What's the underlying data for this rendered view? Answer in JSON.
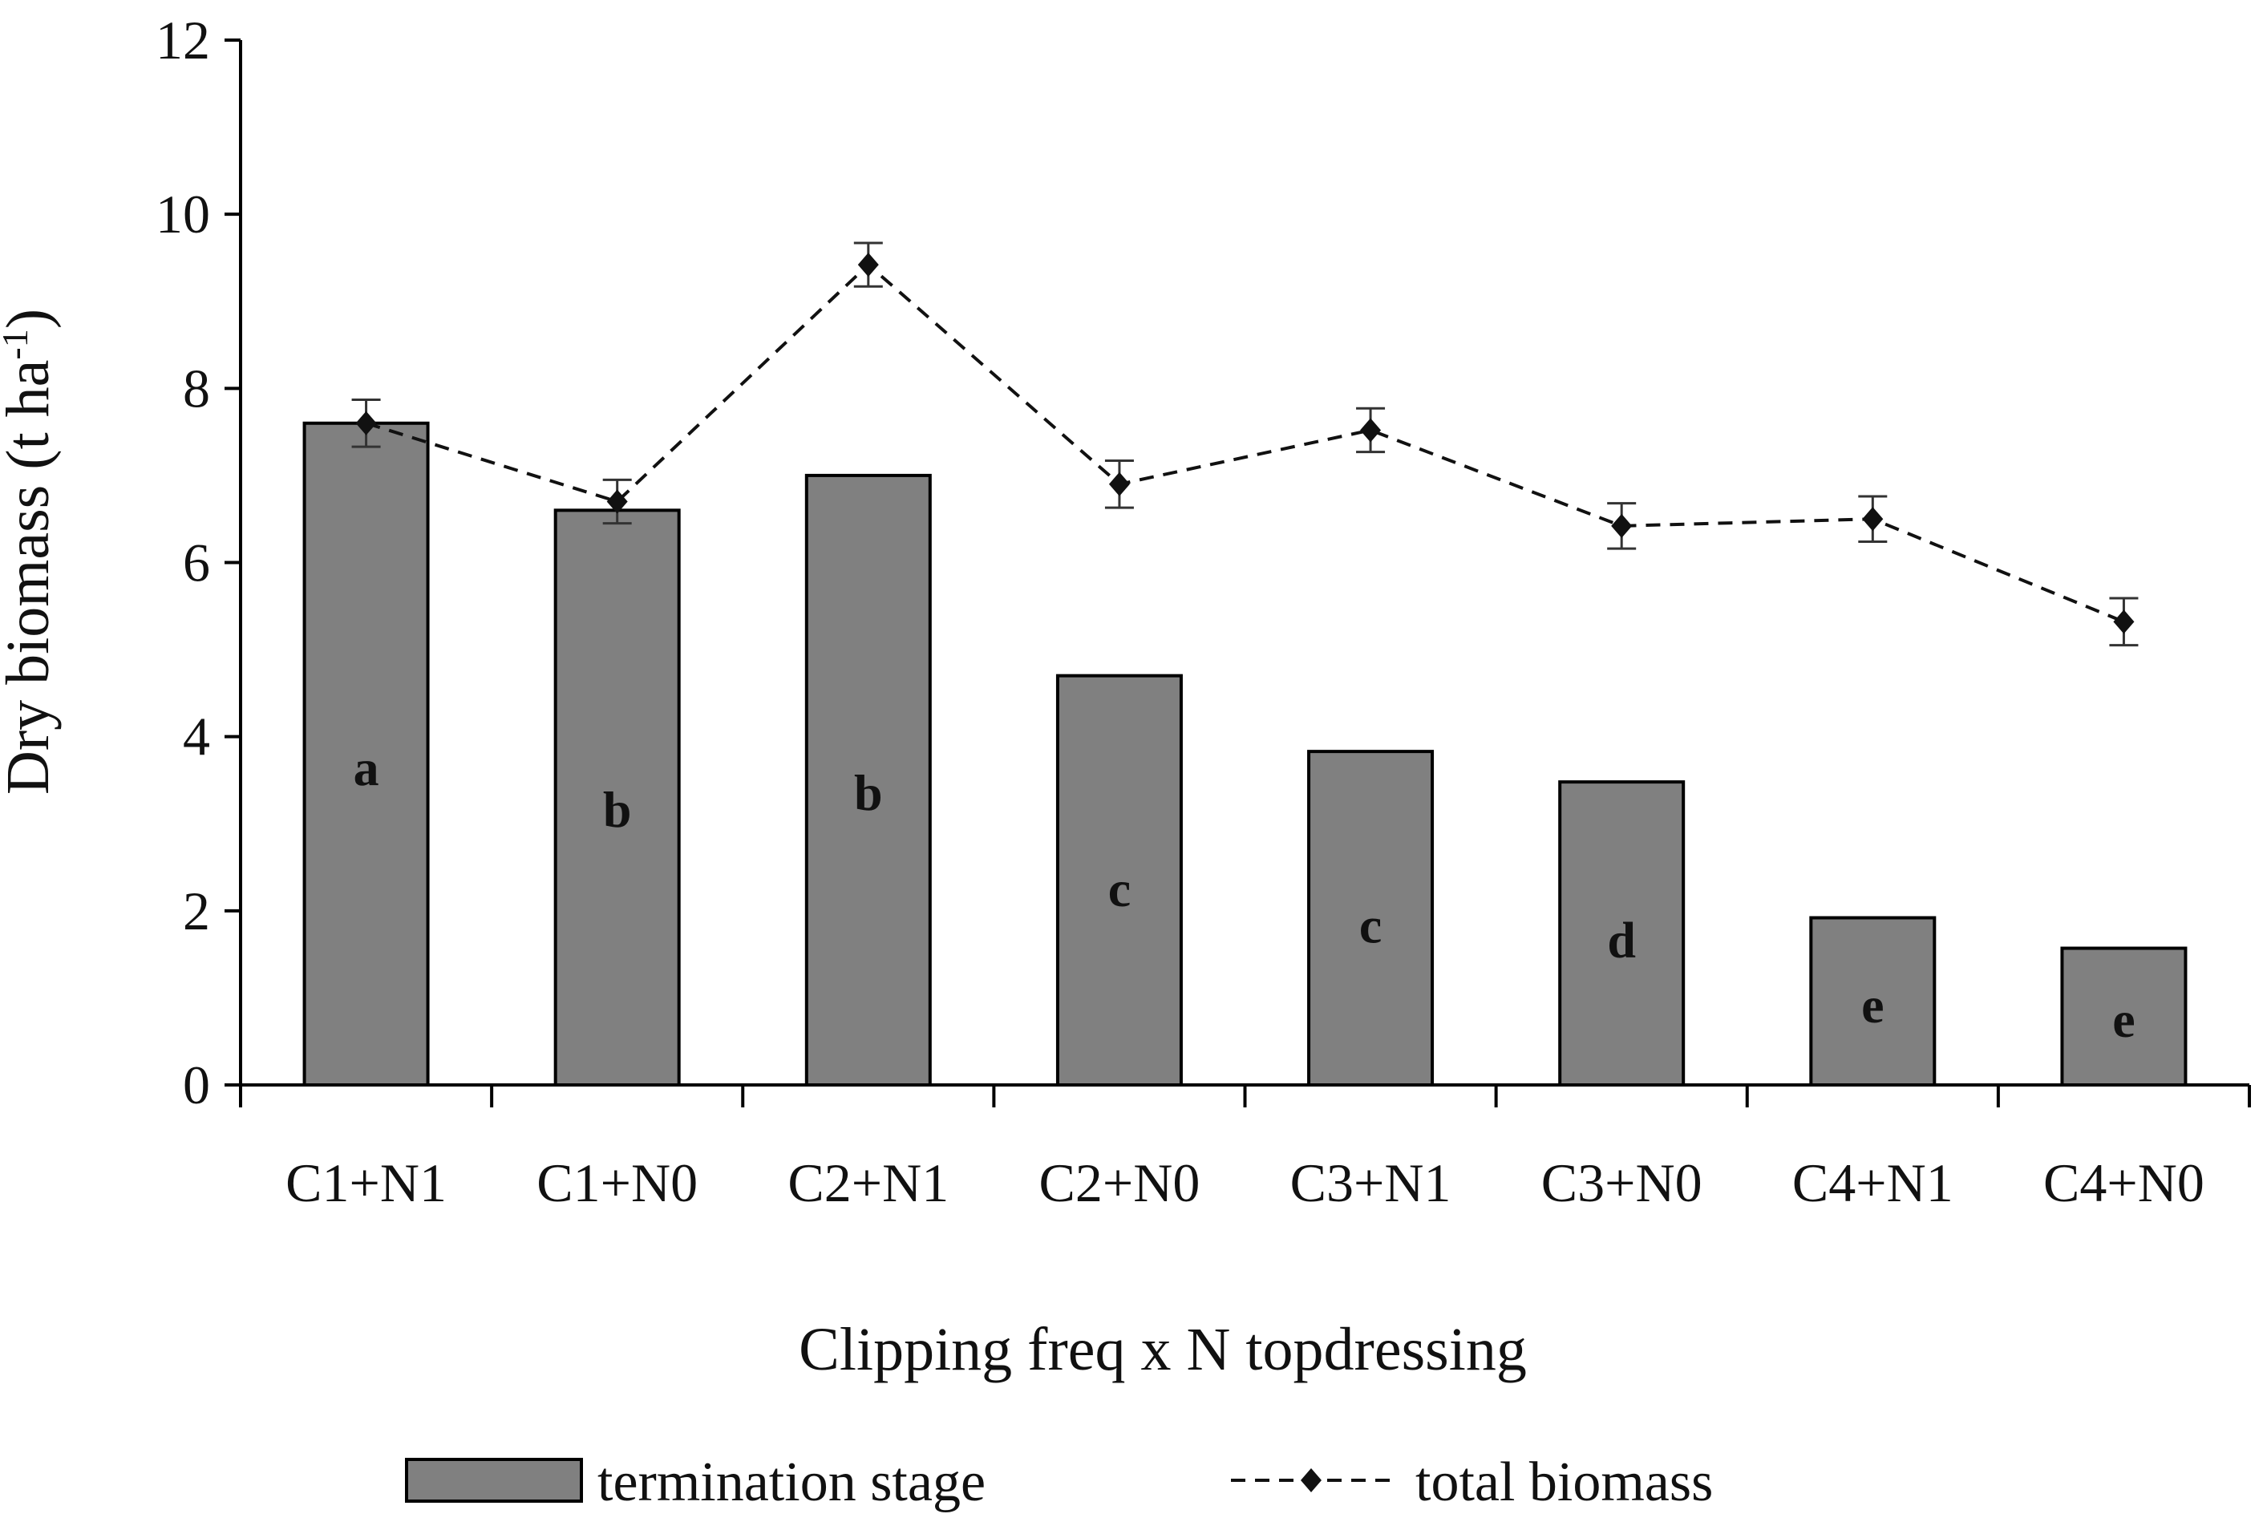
{
  "chart_data": {
    "type": "bar",
    "categories": [
      "C1+N1",
      "C1+N0",
      "C2+N1",
      "C2+N0",
      "C3+N1",
      "C3+N0",
      "C4+N1",
      "C4+N0"
    ],
    "series": [
      {
        "name": "termination stage",
        "kind": "bar",
        "color": "#808080",
        "values": [
          7.6,
          6.6,
          7.0,
          4.7,
          3.83,
          3.48,
          1.92,
          1.57
        ],
        "labels": [
          "a",
          "b",
          "b",
          "c",
          "c",
          "d",
          "e",
          "e"
        ]
      },
      {
        "name": "total biomass",
        "kind": "line",
        "style": "dashed",
        "marker": "diamond",
        "color": "#111111",
        "values": [
          7.6,
          6.7,
          9.42,
          6.9,
          7.52,
          6.42,
          6.5,
          5.32
        ],
        "errors": [
          0.27,
          0.25,
          0.25,
          0.27,
          0.25,
          0.26,
          0.26,
          0.27
        ]
      }
    ],
    "xlabel": "Clipping freq x N topdressing",
    "ylabel": {
      "main": "Dry biomass (t ha",
      "sup": "-1",
      "end": ")"
    },
    "ylim": [
      0,
      12
    ],
    "yticks": [
      "0",
      "2",
      "4",
      "6",
      "8",
      "10",
      "12"
    ],
    "grid": false,
    "legend": {
      "placement": "bottom",
      "entries": [
        "termination stage",
        "total biomass"
      ]
    }
  }
}
